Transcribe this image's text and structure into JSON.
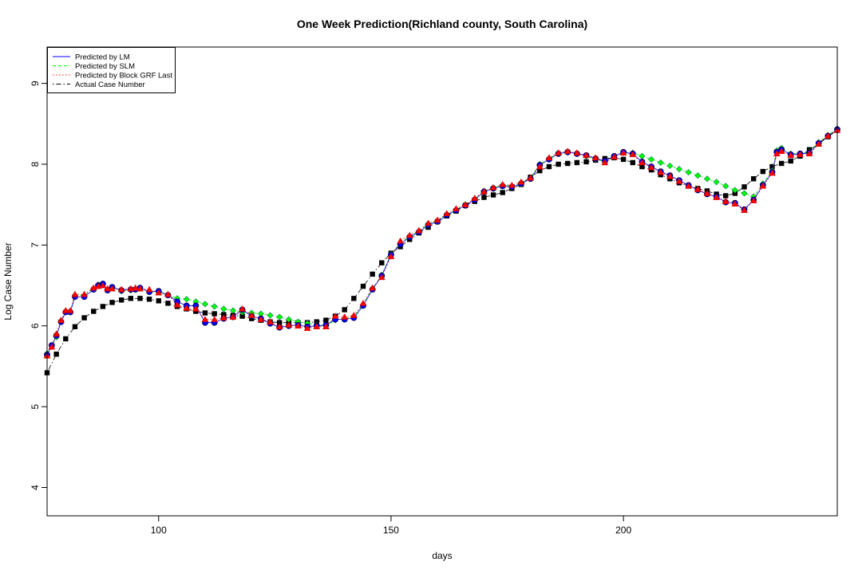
{
  "chart_data": {
    "type": "line",
    "title": "One Week Prediction(Richland county, South Carolina)",
    "xlabel": "days",
    "ylabel": "Log Case Number",
    "xlim": [
      76,
      246
    ],
    "ylim": [
      3.65,
      9.45
    ],
    "xticks": [
      100,
      150,
      200
    ],
    "yticks": [
      4,
      5,
      6,
      7,
      8,
      9
    ],
    "legend_position": "top-left",
    "grid": false,
    "series": [
      {
        "name": "Actual Case Number",
        "color": "#000000",
        "marker": "square",
        "line": "dotdash",
        "x": [
          76,
          78,
          80,
          82,
          84,
          86,
          88,
          90,
          92,
          94,
          96,
          98,
          100,
          102,
          104,
          106,
          108,
          110,
          112,
          114,
          116,
          118,
          120,
          122,
          124,
          126,
          128,
          130,
          132,
          134,
          136,
          138,
          140,
          142,
          144,
          146,
          148,
          150,
          152,
          154,
          156,
          158,
          160,
          162,
          164,
          166,
          168,
          170,
          172,
          174,
          176,
          178,
          180,
          182,
          184,
          186,
          188,
          190,
          192,
          194,
          196,
          198,
          200,
          202,
          204,
          206,
          208,
          210,
          212,
          214,
          216,
          218,
          220,
          222,
          224,
          226,
          228,
          230,
          232,
          234,
          236,
          238,
          240,
          242,
          244,
          246
        ],
        "y": [
          5.42,
          5.65,
          5.84,
          5.99,
          6.1,
          6.18,
          6.24,
          6.29,
          6.32,
          6.34,
          6.34,
          6.33,
          6.31,
          6.28,
          6.24,
          6.21,
          6.18,
          6.16,
          6.15,
          6.14,
          6.13,
          6.12,
          6.09,
          6.07,
          6.05,
          6.04,
          6.04,
          6.04,
          6.04,
          6.05,
          6.07,
          6.12,
          6.2,
          6.34,
          6.49,
          6.64,
          6.78,
          6.9,
          6.98,
          7.07,
          7.15,
          7.22,
          7.29,
          7.36,
          7.42,
          7.49,
          7.54,
          7.59,
          7.62,
          7.65,
          7.7,
          7.75,
          7.84,
          7.92,
          7.97,
          8.0,
          8.01,
          8.02,
          8.03,
          8.05,
          8.07,
          8.08,
          8.06,
          8.02,
          7.97,
          7.93,
          7.87,
          7.82,
          7.77,
          7.73,
          7.7,
          7.67,
          7.63,
          7.61,
          7.64,
          7.72,
          7.82,
          7.91,
          7.97,
          8.01,
          8.04,
          8.1,
          8.18,
          8.25,
          8.34,
          8.42
        ]
      },
      {
        "name": "Predicted by LM",
        "color": "#0000ff",
        "marker": "circle",
        "line": "solid",
        "x": [
          76,
          77,
          78,
          79,
          80,
          81,
          82,
          84,
          86,
          87,
          88,
          89,
          90,
          92,
          94,
          95,
          96,
          98,
          100,
          102,
          104,
          106,
          108,
          110,
          112,
          114,
          116,
          118,
          120,
          122,
          124,
          126,
          128,
          130,
          132,
          134,
          136,
          138,
          140,
          142,
          144,
          146,
          148,
          150,
          152,
          154,
          156,
          158,
          160,
          162,
          164,
          166,
          168,
          170,
          172,
          174,
          176,
          178,
          180,
          182,
          184,
          186,
          188,
          190,
          192,
          194,
          196,
          198,
          200,
          202,
          204,
          206,
          208,
          210,
          212,
          214,
          216,
          218,
          220,
          222,
          224,
          226,
          228,
          230,
          232,
          233,
          234,
          236,
          238,
          240,
          242,
          244,
          246
        ],
        "y": [
          5.64,
          5.76,
          5.88,
          6.05,
          6.17,
          6.17,
          6.36,
          6.36,
          6.45,
          6.5,
          6.52,
          6.44,
          6.48,
          6.44,
          6.45,
          6.45,
          6.47,
          6.42,
          6.43,
          6.38,
          6.3,
          6.25,
          6.25,
          6.04,
          6.04,
          6.09,
          6.11,
          6.2,
          6.12,
          6.09,
          6.03,
          5.98,
          6.0,
          6.01,
          5.99,
          6.0,
          6.01,
          6.08,
          6.08,
          6.1,
          6.25,
          6.45,
          6.62,
          6.88,
          7.01,
          7.1,
          7.16,
          7.25,
          7.29,
          7.37,
          7.43,
          7.49,
          7.56,
          7.66,
          7.7,
          7.73,
          7.72,
          7.76,
          7.82,
          7.99,
          8.06,
          8.13,
          8.15,
          8.13,
          8.11,
          8.07,
          8.04,
          8.1,
          8.15,
          8.13,
          8.03,
          7.97,
          7.91,
          7.86,
          7.8,
          7.74,
          7.68,
          7.63,
          7.6,
          7.53,
          7.52,
          7.44,
          7.56,
          7.74,
          7.9,
          8.15,
          8.18,
          8.12,
          8.13,
          8.14,
          8.26,
          8.35,
          8.43
        ]
      },
      {
        "name": "Predicted by SLM",
        "color": "#00ff00",
        "marker": "diamond",
        "line": "dashed",
        "x": [
          76,
          77,
          78,
          79,
          80,
          81,
          82,
          84,
          86,
          87,
          88,
          89,
          90,
          92,
          94,
          95,
          96,
          98,
          100,
          102,
          104,
          106,
          108,
          110,
          112,
          114,
          116,
          118,
          120,
          122,
          124,
          126,
          128,
          130,
          132,
          134,
          136,
          138,
          140,
          142,
          144,
          146,
          148,
          150,
          152,
          154,
          156,
          158,
          160,
          162,
          164,
          166,
          168,
          170,
          172,
          174,
          176,
          178,
          180,
          182,
          184,
          186,
          188,
          190,
          192,
          194,
          196,
          198,
          200,
          202,
          204,
          206,
          208,
          210,
          212,
          214,
          216,
          218,
          220,
          222,
          224,
          226,
          228,
          230,
          232,
          233,
          234,
          236,
          238,
          240,
          242,
          244,
          246
        ],
        "y": [
          5.66,
          5.75,
          5.86,
          6.06,
          6.17,
          6.17,
          6.38,
          6.38,
          6.46,
          6.51,
          6.52,
          6.45,
          6.47,
          6.43,
          6.44,
          6.45,
          6.46,
          6.43,
          6.42,
          6.38,
          6.34,
          6.33,
          6.3,
          6.27,
          6.24,
          6.21,
          6.19,
          6.17,
          6.16,
          6.15,
          6.13,
          6.11,
          6.08,
          6.05,
          6.03,
          6.01,
          6.0,
          6.07,
          6.09,
          6.12,
          6.26,
          6.46,
          6.63,
          6.89,
          7.02,
          7.11,
          7.17,
          7.26,
          7.3,
          7.38,
          7.44,
          7.5,
          7.57,
          7.67,
          7.71,
          7.74,
          7.73,
          7.77,
          7.83,
          8.0,
          8.07,
          8.13,
          8.15,
          8.13,
          8.1,
          8.06,
          8.03,
          8.09,
          8.14,
          8.14,
          8.1,
          8.06,
          8.02,
          7.98,
          7.94,
          7.9,
          7.86,
          7.82,
          7.78,
          7.73,
          7.68,
          7.64,
          7.6,
          7.76,
          7.92,
          8.17,
          8.2,
          8.13,
          8.13,
          8.15,
          8.27,
          8.36,
          8.44
        ]
      },
      {
        "name": "Predicted by Block GRF Last",
        "color": "#ff0000",
        "marker": "triangle",
        "line": "dotted",
        "x": [
          76,
          77,
          78,
          79,
          80,
          81,
          82,
          84,
          86,
          87,
          88,
          89,
          90,
          92,
          94,
          95,
          96,
          98,
          100,
          102,
          104,
          106,
          108,
          110,
          112,
          114,
          116,
          118,
          120,
          122,
          124,
          126,
          128,
          130,
          132,
          134,
          136,
          138,
          140,
          142,
          144,
          146,
          148,
          150,
          152,
          154,
          156,
          158,
          160,
          162,
          164,
          166,
          168,
          170,
          172,
          174,
          176,
          178,
          180,
          182,
          184,
          186,
          188,
          190,
          192,
          194,
          196,
          198,
          200,
          202,
          204,
          206,
          208,
          210,
          212,
          214,
          216,
          218,
          220,
          222,
          224,
          226,
          228,
          230,
          232,
          233,
          234,
          236,
          238,
          240,
          242,
          244,
          246
        ],
        "y": [
          5.63,
          5.74,
          5.9,
          6.07,
          6.19,
          6.19,
          6.39,
          6.39,
          6.47,
          6.49,
          6.5,
          6.46,
          6.46,
          6.45,
          6.46,
          6.47,
          6.46,
          6.45,
          6.41,
          6.39,
          6.26,
          6.22,
          6.21,
          6.08,
          6.08,
          6.1,
          6.11,
          6.21,
          6.13,
          6.08,
          6.05,
          5.99,
          6.01,
          6.0,
          5.97,
          5.99,
          5.99,
          6.12,
          6.11,
          6.13,
          6.28,
          6.47,
          6.6,
          6.86,
          7.05,
          7.12,
          7.18,
          7.27,
          7.31,
          7.39,
          7.45,
          7.5,
          7.58,
          7.66,
          7.71,
          7.75,
          7.74,
          7.78,
          7.83,
          7.97,
          8.08,
          8.14,
          8.16,
          8.14,
          8.11,
          8.08,
          8.02,
          8.09,
          8.14,
          8.12,
          8.02,
          7.96,
          7.9,
          7.85,
          7.79,
          7.73,
          7.69,
          7.64,
          7.59,
          7.54,
          7.51,
          7.43,
          7.55,
          7.73,
          7.89,
          8.13,
          8.16,
          8.11,
          8.12,
          8.13,
          8.25,
          8.35,
          8.42
        ]
      }
    ]
  }
}
